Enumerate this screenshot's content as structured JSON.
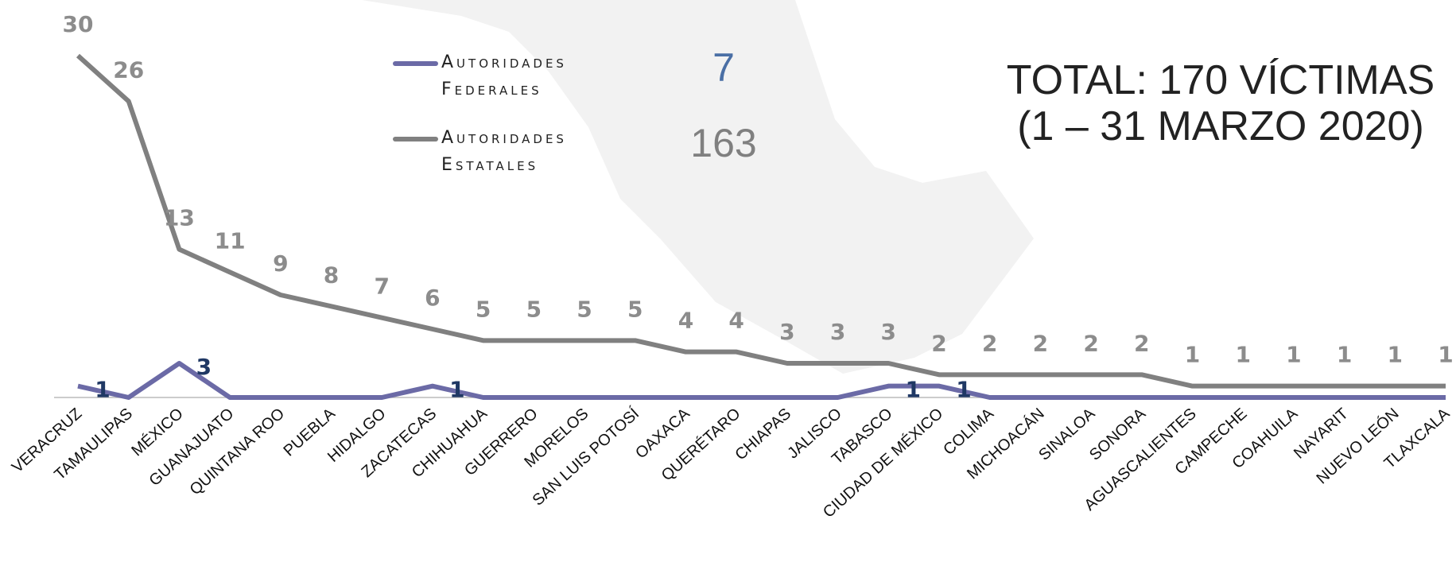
{
  "chart_data": {
    "type": "line",
    "title": "TOTAL: 170 VÍCTIMAS",
    "subtitle": "(1 – 31 MARZO 2020)",
    "categories": [
      "VERACRUZ",
      "TAMAULIPAS",
      "MÉXICO",
      "GUANAJUATO",
      "QUINTANA ROO",
      "PUEBLA",
      "HIDALGO",
      "ZACATECAS",
      "CHIHUAHUA",
      "GUERRERO",
      "MORELOS",
      "SAN LUIS POTOSÍ",
      "OAXACA",
      "QUERÉTARO",
      "CHIAPAS",
      "JALISCO",
      "TABASCO",
      "CIUDAD DE MÉXICO",
      "COLIMA",
      "MICHOACÁN",
      "SINALOA",
      "SONORA",
      "AGUASCALIENTES",
      "CAMPECHE",
      "COAHUILA",
      "NAYARIT",
      "NUEVO LEÓN",
      "TLAXCALA"
    ],
    "series": [
      {
        "name": "Autoridades Federales",
        "color": "#6b6aa6",
        "label_color": "#1f3864",
        "total": 7,
        "total_color": "#4a6fa5",
        "values": [
          1,
          0,
          3,
          0,
          0,
          0,
          0,
          1,
          0,
          0,
          0,
          0,
          0,
          0,
          0,
          0,
          1,
          1,
          0,
          0,
          0,
          0,
          0,
          0,
          0,
          0,
          0,
          0
        ]
      },
      {
        "name": "Autoridades Estatales",
        "color": "#808080",
        "label_color": "#8c8c8c",
        "total": 163,
        "total_color": "#808080",
        "values": [
          30,
          26,
          13,
          11,
          9,
          8,
          7,
          6,
          5,
          5,
          5,
          5,
          4,
          4,
          3,
          3,
          3,
          2,
          2,
          2,
          2,
          2,
          1,
          1,
          1,
          1,
          1,
          1
        ]
      }
    ],
    "ylim": [
      0,
      30
    ]
  }
}
